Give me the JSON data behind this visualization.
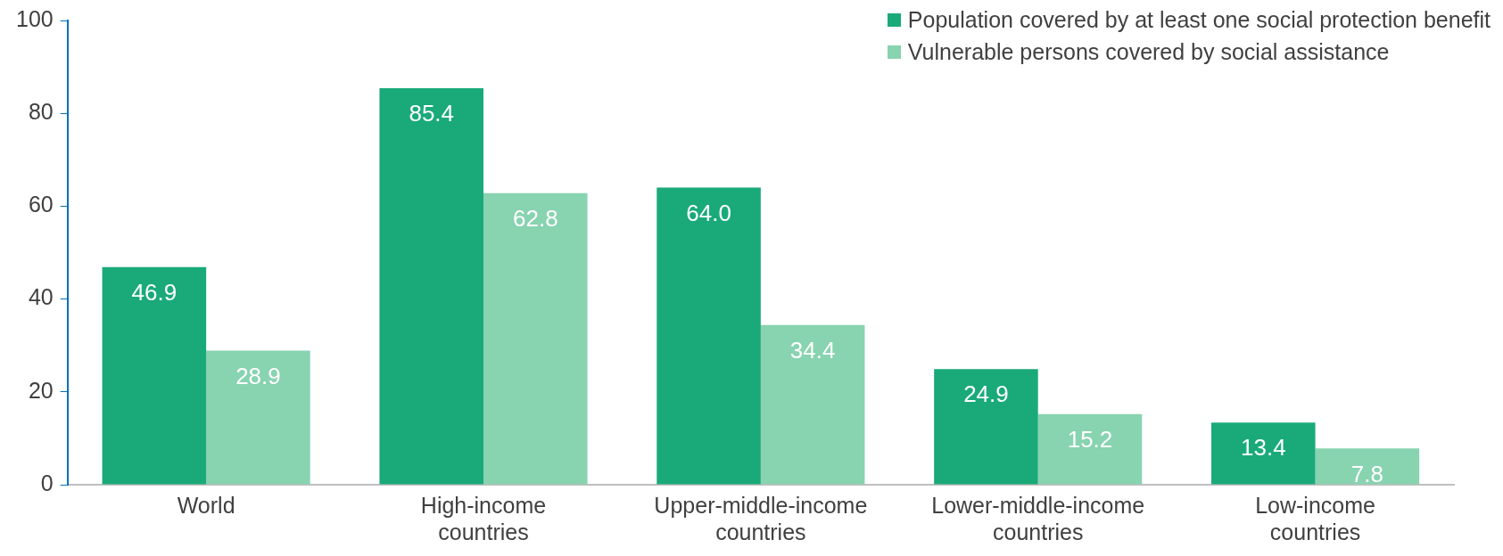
{
  "chart_data": {
    "type": "bar",
    "categories": [
      "World",
      "High-income countries",
      "Upper-middle-income countries",
      "Lower-middle-income countries",
      "Low-income countries"
    ],
    "series": [
      {
        "name": "Population covered by at least one social protection benefit",
        "color": "#1aaa79",
        "values": [
          46.9,
          85.4,
          64.0,
          24.9,
          13.4
        ]
      },
      {
        "name": "Vulnerable persons covered by social assistance",
        "color": "#88d3b0",
        "values": [
          28.9,
          62.8,
          34.4,
          15.2,
          7.8
        ]
      }
    ],
    "value_labels": [
      [
        "46.9",
        "85.4",
        "64.0",
        "24.9",
        "13.4"
      ],
      [
        "28.9",
        "62.8",
        "34.4",
        "15.2",
        "7.8"
      ]
    ],
    "ylim": [
      0,
      100
    ],
    "yticks": [
      0,
      20,
      40,
      60,
      80,
      100
    ],
    "grid": false,
    "legend": "top right"
  }
}
